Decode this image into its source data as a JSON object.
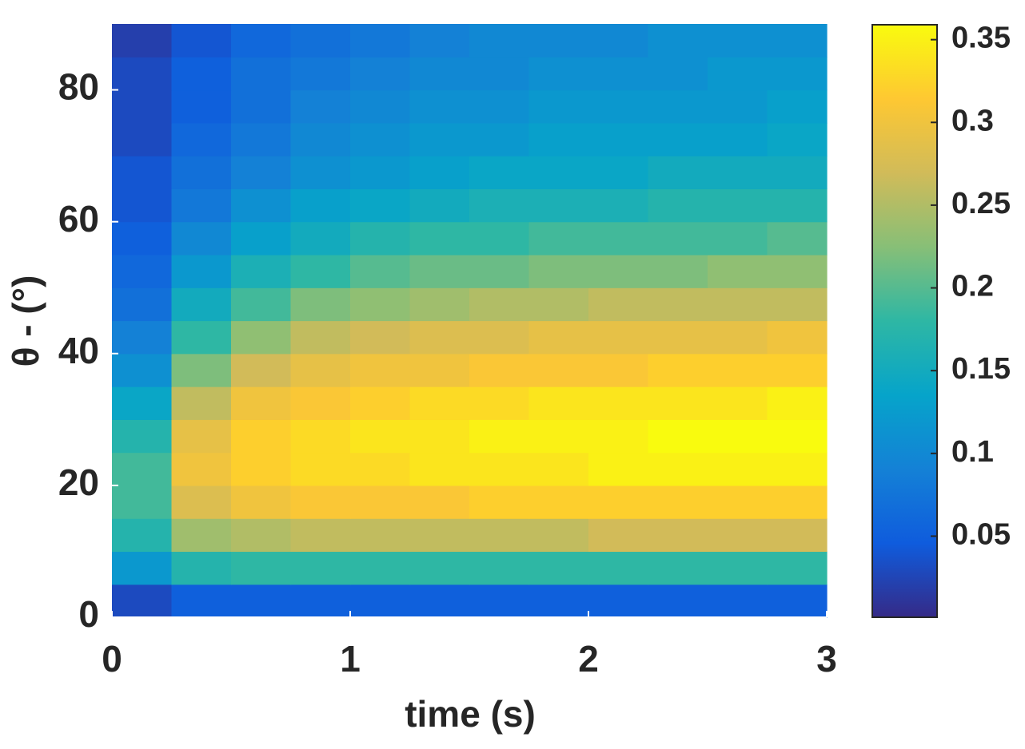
{
  "chart_data": {
    "type": "heatmap",
    "xlabel": "time (s)",
    "ylabel": "θ - (°)",
    "x": [
      0.125,
      0.375,
      0.625,
      0.875,
      1.125,
      1.375,
      1.625,
      1.875,
      2.125,
      2.375,
      2.625,
      2.875
    ],
    "y": [
      2.5,
      7.5,
      12.5,
      17.5,
      22.5,
      27.5,
      32.5,
      37.5,
      42.5,
      47.5,
      52.5,
      57.5,
      62.5,
      67.5,
      72.5,
      77.5,
      82.5,
      87.5
    ],
    "z": [
      [
        0.03,
        0.05,
        0.05,
        0.05,
        0.05,
        0.05,
        0.05,
        0.05,
        0.05,
        0.05,
        0.05,
        0.05
      ],
      [
        0.12,
        0.17,
        0.18,
        0.18,
        0.18,
        0.18,
        0.18,
        0.18,
        0.18,
        0.18,
        0.18,
        0.18
      ],
      [
        0.17,
        0.24,
        0.25,
        0.26,
        0.26,
        0.26,
        0.26,
        0.26,
        0.27,
        0.27,
        0.27,
        0.27
      ],
      [
        0.19,
        0.28,
        0.3,
        0.31,
        0.31,
        0.31,
        0.32,
        0.32,
        0.32,
        0.32,
        0.32,
        0.32
      ],
      [
        0.19,
        0.3,
        0.32,
        0.33,
        0.33,
        0.34,
        0.34,
        0.34,
        0.35,
        0.35,
        0.35,
        0.35
      ],
      [
        0.17,
        0.29,
        0.32,
        0.33,
        0.34,
        0.34,
        0.35,
        0.35,
        0.35,
        0.36,
        0.36,
        0.36
      ],
      [
        0.14,
        0.26,
        0.3,
        0.31,
        0.32,
        0.33,
        0.33,
        0.34,
        0.34,
        0.34,
        0.34,
        0.35
      ],
      [
        0.11,
        0.22,
        0.27,
        0.29,
        0.3,
        0.3,
        0.31,
        0.31,
        0.31,
        0.32,
        0.32,
        0.32
      ],
      [
        0.09,
        0.18,
        0.23,
        0.26,
        0.27,
        0.28,
        0.28,
        0.29,
        0.29,
        0.29,
        0.29,
        0.3
      ],
      [
        0.07,
        0.15,
        0.19,
        0.22,
        0.23,
        0.24,
        0.25,
        0.25,
        0.26,
        0.26,
        0.26,
        0.26
      ],
      [
        0.06,
        0.12,
        0.16,
        0.18,
        0.2,
        0.21,
        0.21,
        0.22,
        0.22,
        0.22,
        0.23,
        0.23
      ],
      [
        0.05,
        0.1,
        0.13,
        0.15,
        0.17,
        0.18,
        0.18,
        0.19,
        0.19,
        0.19,
        0.19,
        0.2
      ],
      [
        0.04,
        0.08,
        0.11,
        0.13,
        0.14,
        0.15,
        0.16,
        0.16,
        0.16,
        0.17,
        0.17,
        0.17
      ],
      [
        0.04,
        0.07,
        0.09,
        0.11,
        0.12,
        0.13,
        0.14,
        0.14,
        0.14,
        0.15,
        0.15,
        0.15
      ],
      [
        0.03,
        0.06,
        0.08,
        0.1,
        0.11,
        0.12,
        0.12,
        0.13,
        0.13,
        0.13,
        0.13,
        0.14
      ],
      [
        0.03,
        0.05,
        0.07,
        0.09,
        0.1,
        0.11,
        0.11,
        0.12,
        0.12,
        0.12,
        0.12,
        0.13
      ],
      [
        0.03,
        0.05,
        0.07,
        0.08,
        0.09,
        0.1,
        0.1,
        0.11,
        0.11,
        0.11,
        0.12,
        0.12
      ],
      [
        0.02,
        0.04,
        0.06,
        0.07,
        0.08,
        0.09,
        0.1,
        0.1,
        0.1,
        0.11,
        0.11,
        0.11
      ]
    ],
    "xlim": [
      0,
      3
    ],
    "xticks": [
      0,
      1,
      2,
      3
    ],
    "ylim": [
      0,
      90
    ],
    "yticks": [
      0,
      20,
      40,
      60,
      80
    ],
    "clim": [
      0.001,
      0.359
    ],
    "cticks": [
      0.05,
      0.1,
      0.15,
      0.2,
      0.25,
      0.3,
      0.35
    ],
    "colormap": [
      "#352a87",
      "#0f5cdd",
      "#1481d6",
      "#06a4ca",
      "#2eb7a4",
      "#87bf77",
      "#d1bb59",
      "#fec832",
      "#f9fb0e"
    ]
  }
}
